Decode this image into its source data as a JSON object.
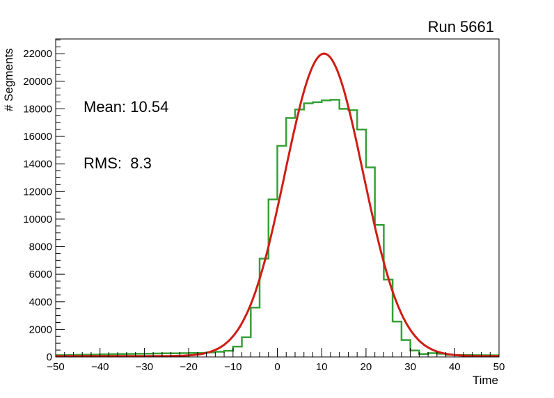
{
  "header": {
    "title": "Run 5661"
  },
  "stats": {
    "mean": "Mean: 10.54",
    "rms": "RMS:  8.3"
  },
  "colors": {
    "histogram": "#35a035",
    "fit_curve": "#cf1d14",
    "frame": "#000000",
    "background": "#ffffff",
    "text": "#000000"
  },
  "axes": {
    "x": {
      "min": -50,
      "max": 50,
      "major_step": 10,
      "minor_step": 2,
      "tick_values": [
        -50,
        -40,
        -30,
        -20,
        -10,
        0,
        10,
        20,
        30,
        40,
        50
      ],
      "tick_labels": [
        "−50",
        "−40",
        "−30",
        "−20",
        "−10",
        "0",
        "10",
        "20",
        "30",
        "40",
        "50"
      ]
    },
    "y": {
      "min": 0,
      "max": 23070,
      "major_step": 2000,
      "minor_step": 500,
      "tick_values": [
        0,
        2000,
        4000,
        6000,
        8000,
        10000,
        12000,
        14000,
        16000,
        18000,
        20000,
        22000
      ],
      "tick_labels": [
        "0",
        "2000",
        "4000",
        "6000",
        "8000",
        "10000",
        "12000",
        "14000",
        "16000",
        "18000",
        "20000",
        "22000"
      ]
    }
  },
  "chart_data": {
    "type": "bar",
    "subtype": "step-histogram-with-fit",
    "title": "Run 5661",
    "xlabel": "Time",
    "ylabel": "# Segments",
    "xlim": [
      -50,
      50
    ],
    "ylim": [
      0,
      23070
    ],
    "grid": false,
    "legend": "none",
    "annotations": [
      "Mean: 10.54",
      "RMS:  8.3"
    ],
    "series": [
      {
        "name": "time-histogram",
        "style": "step",
        "color": "#35a035",
        "bin_start": -50,
        "bin_width": 2,
        "values": [
          130,
          140,
          150,
          160,
          170,
          185,
          200,
          210,
          220,
          230,
          240,
          250,
          260,
          270,
          280,
          290,
          300,
          330,
          380,
          450,
          750,
          1430,
          3580,
          7130,
          11430,
          15320,
          17340,
          17950,
          18400,
          18480,
          18620,
          18660,
          18000,
          17900,
          16500,
          13750,
          9580,
          5610,
          2570,
          1230,
          470,
          215,
          280,
          230,
          150,
          140,
          135,
          130,
          125,
          120
        ]
      },
      {
        "name": "gaussian-fit",
        "style": "curve",
        "color": "#cf1d14",
        "model": "gaussian",
        "amplitude": 21950,
        "mean": 10.54,
        "sigma": 8.8,
        "baseline": 60
      }
    ]
  }
}
